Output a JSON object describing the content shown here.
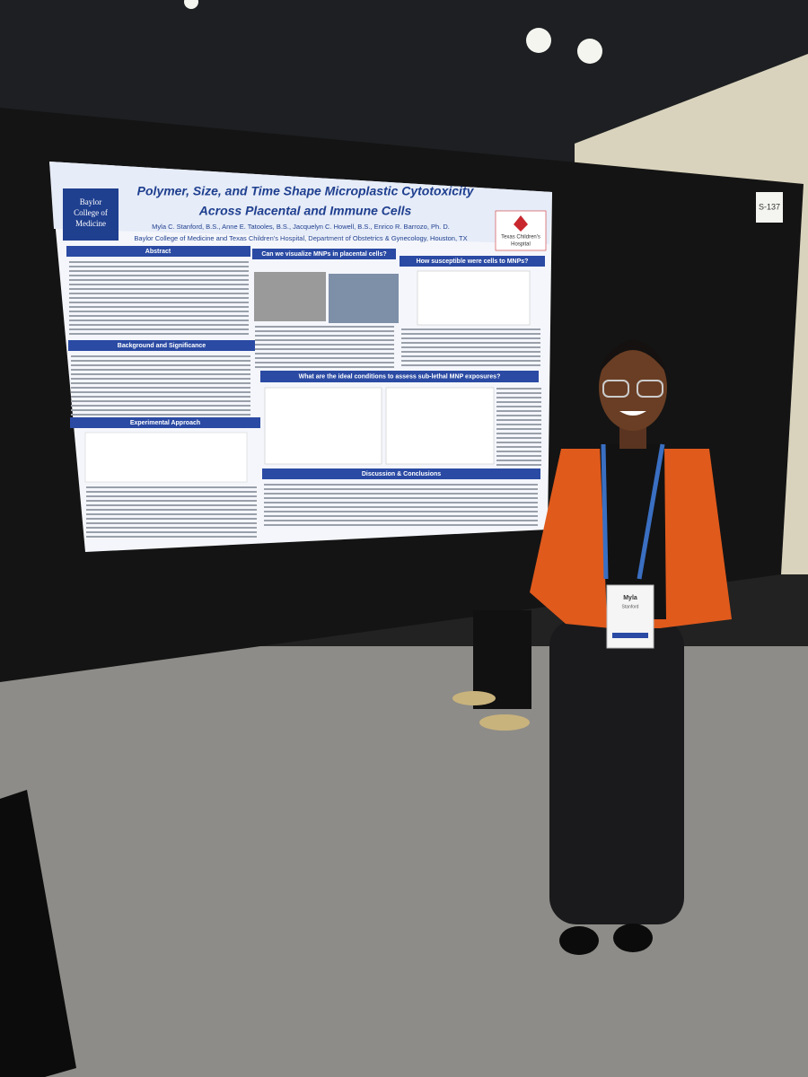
{
  "poster": {
    "title_line1": "Polymer, Size, and Time Shape Microplastic Cytotoxicity",
    "title_line2": "Across Placental and Immune Cells",
    "authors": "Myla C. Stanford, B.S., Anne E. Tatooles, B.S., Jacquelyn C. Howell, B.S., Enrico R. Barrozo, Ph. D.",
    "affiliation": "Baylor College of Medicine and Texas Children's Hospital, Department of Obstetrics & Gynecology, Houston, TX",
    "logo_left": [
      "Baylor",
      "College of",
      "Medicine"
    ],
    "logo_right": [
      "Texas Children's",
      "Hospital"
    ],
    "sections": [
      "Abstract",
      "Can we visualize MNPs in placental cells?",
      "How susceptible were cells to MNPs?",
      "Background and Significance",
      "What are the ideal conditions to assess sub-lethal MNP exposures?",
      "Experimental Approach",
      "Discussion & Conclusions"
    ]
  },
  "board_label": "S-137",
  "badge": {
    "name": "Myla",
    "surname": "Stanford"
  }
}
